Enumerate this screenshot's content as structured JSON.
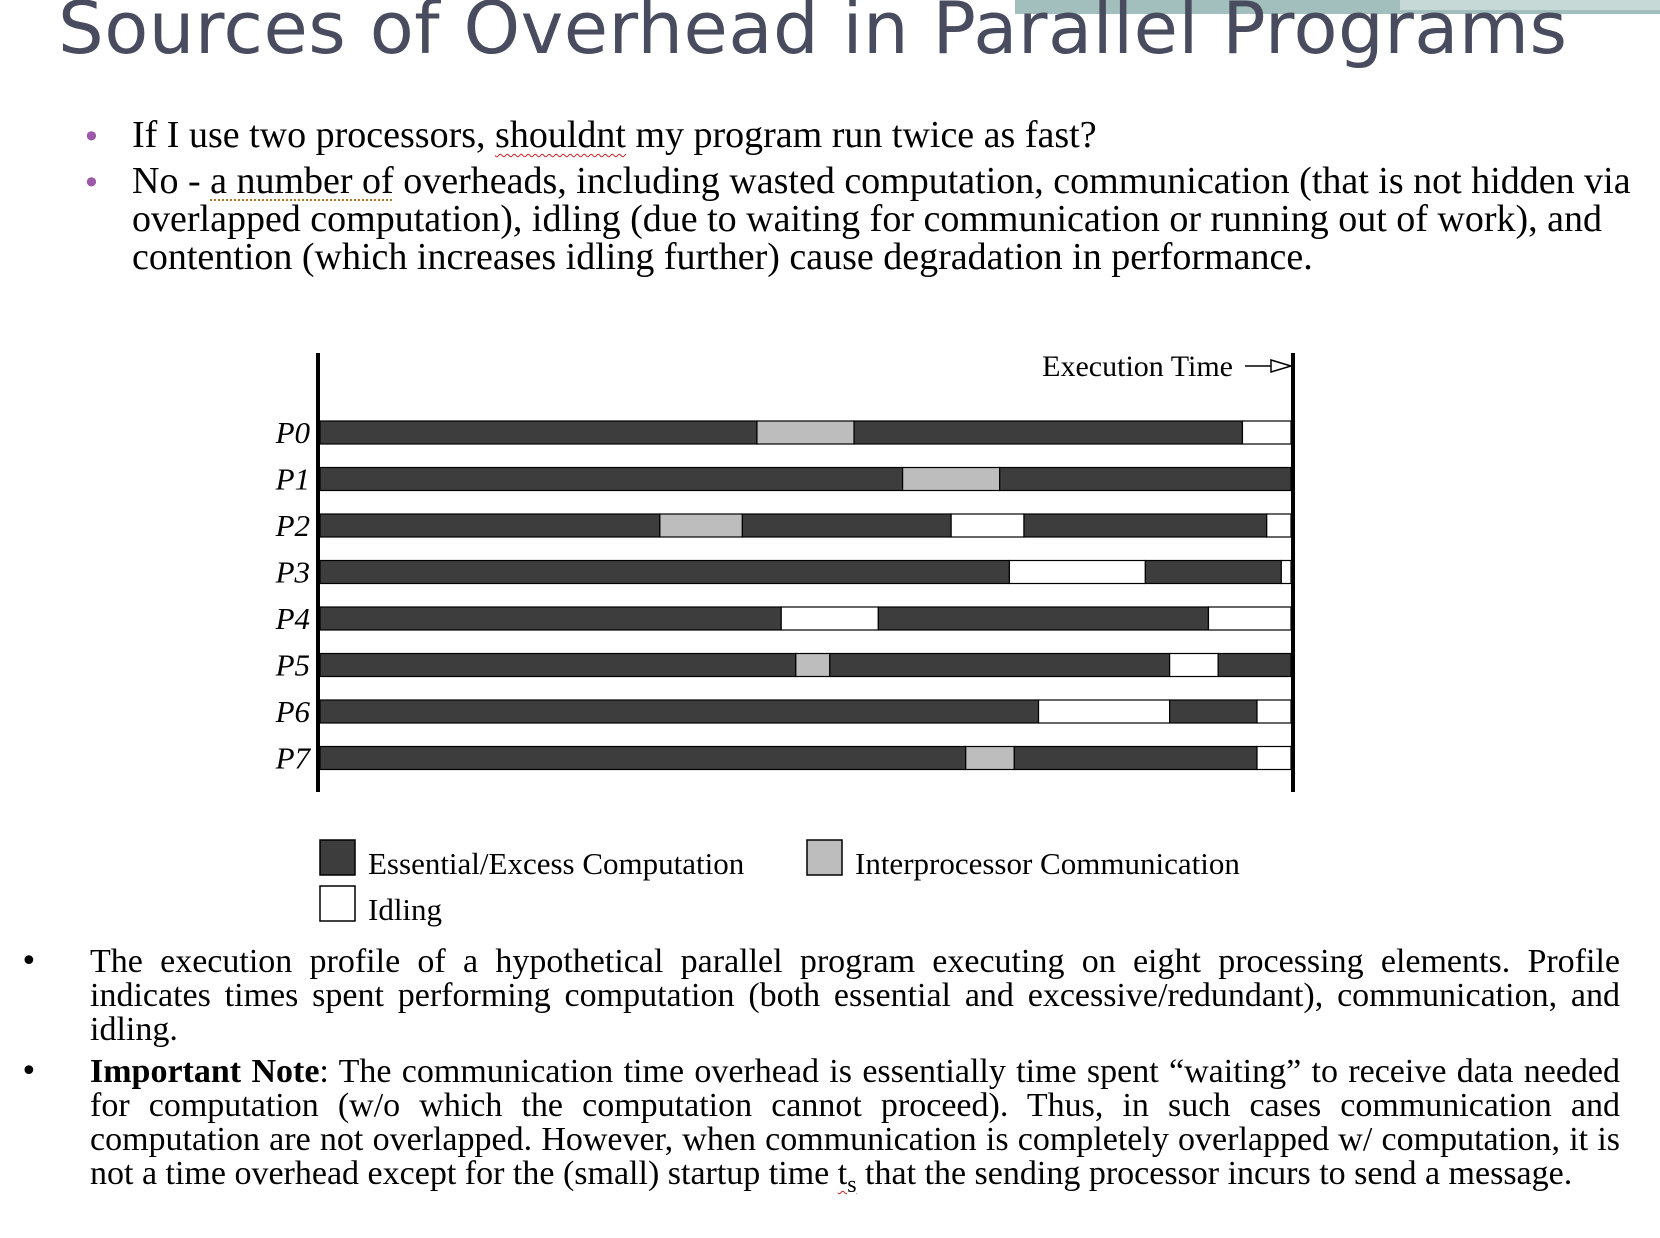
{
  "title": "Sources of Overhead in Parallel Programs",
  "top_bullets": {
    "b1": {
      "pre": "If I use two processors, ",
      "flagged": "shouldnt",
      "post": " my program run twice as fast?"
    },
    "b2": {
      "pre": "No - ",
      "flagged": "a number of",
      "post": " overheads, including wasted computation, communication (that is not hidden via overlapped computation), idling (due to waiting for communication or running out of work), and contention (which increases idling further) cause degradation in performance."
    }
  },
  "chart_data": {
    "type": "bar",
    "orientation": "horizontal-stacked-timeline",
    "top_label": "Execution Time",
    "categories": [
      "P0",
      "P1",
      "P2",
      "P3",
      "P4",
      "P5",
      "P6",
      "P7"
    ],
    "total_time": 100,
    "segments": {
      "P0": [
        [
          "comp",
          45
        ],
        [
          "comm",
          10
        ],
        [
          "comp",
          40
        ],
        [
          "idle",
          5
        ]
      ],
      "P1": [
        [
          "comp",
          60
        ],
        [
          "comm",
          10
        ],
        [
          "comp",
          30
        ]
      ],
      "P2": [
        [
          "comp",
          35
        ],
        [
          "comm",
          8.5
        ],
        [
          "comp",
          21.5
        ],
        [
          "idle",
          7.5
        ],
        [
          "comp",
          25
        ],
        [
          "idle",
          2.5
        ]
      ],
      "P3": [
        [
          "comp",
          71
        ],
        [
          "idle",
          14
        ],
        [
          "comp",
          14
        ],
        [
          "idle",
          1
        ]
      ],
      "P4": [
        [
          "comp",
          47.5
        ],
        [
          "idle",
          10
        ],
        [
          "comp",
          34
        ],
        [
          "idle",
          8.5
        ]
      ],
      "P5": [
        [
          "comp",
          49
        ],
        [
          "comm",
          3.5
        ],
        [
          "comp",
          35
        ],
        [
          "idle",
          5
        ],
        [
          "comp",
          7.5
        ]
      ],
      "P6": [
        [
          "comp",
          74
        ],
        [
          "idle",
          13.5
        ],
        [
          "comp",
          9
        ],
        [
          "idle",
          3.5
        ]
      ],
      "P7": [
        [
          "comp",
          66.5
        ],
        [
          "comm",
          5
        ],
        [
          "comp",
          25
        ],
        [
          "idle",
          3.5
        ]
      ]
    },
    "legend": [
      {
        "key": "comp",
        "label": "Essential/Excess Computation",
        "color": "#3d3d3d"
      },
      {
        "key": "comm",
        "label": "Interprocessor Communication",
        "color": "#bdbdbd"
      },
      {
        "key": "idle",
        "label": "Idling",
        "color": "#ffffff"
      }
    ]
  },
  "bottom_bullets": {
    "b1": "The execution profile of a hypothetical parallel program executing on eight processing elements. Profile indicates times spent performing computation (both essential and excessive/redundant), communication, and idling.",
    "b2_bold": "Important Note",
    "b2_pre": ": The communication time overhead is essentially time spent “waiting” to receive data needed for computation (w/o which the computation cannot proceed). Thus, in such cases communication and computation are not overlapped. However, when communication is completely overlapped w/ computation, it is not a time overhead except for the (small) startup time ",
    "b2_sub_base": "t",
    "b2_sub": "s",
    "b2_post": " that the sending processor incurs to send a message."
  }
}
